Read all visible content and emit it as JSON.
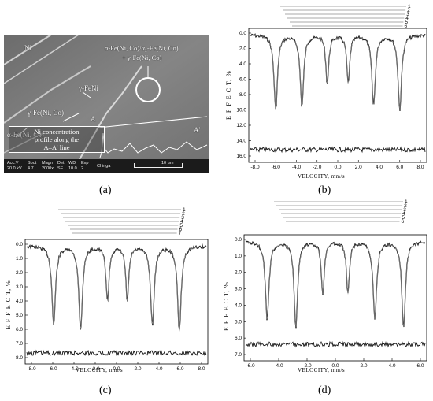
{
  "panels": [
    {
      "id": "a",
      "caption": "(a)"
    },
    {
      "id": "b",
      "caption": "(b)"
    },
    {
      "id": "c",
      "caption": "(c)"
    },
    {
      "id": "d",
      "caption": "(d)"
    }
  ],
  "sem": {
    "phase_labels": [
      "Ni",
      "α-Fe(Ni, Co)/α₂-Fe(Ni, Co)",
      "+ γ-Fe(Ni, Co)",
      "γ-FeNi",
      "γ-Fe(Ni, Co)",
      "A",
      "A'",
      "α-Fe(Ni, Co)"
    ],
    "profile_note": [
      "Ni concentration",
      "profile along the",
      "A–A' line"
    ],
    "info_headers": [
      "Acc.V",
      "Spot",
      "Magn",
      "Det",
      "WD",
      "Exp"
    ],
    "info_values": [
      "20.0 kV",
      "4.7",
      "2000x",
      "SE",
      "10.0",
      "2"
    ],
    "operator": "Chinga",
    "scale_label": "10 μm"
  },
  "spectra": {
    "ylabel": "E F F E C T, %",
    "xlabel": "VELOCITY,  mm/s",
    "b": {
      "yticks": [
        "0.0",
        "2.0",
        "4.0",
        "6.0",
        "8.0",
        "10.0",
        "12.0",
        "14.0",
        "16.0"
      ],
      "xticks": [
        "-8.0",
        "-6.0",
        "-4.0",
        "-2.0",
        "0.0",
        "2.0",
        "4.0",
        "6.0",
        "8.0"
      ],
      "brackets": [
        "1",
        "2",
        "3",
        "4",
        "5",
        "6"
      ]
    },
    "c": {
      "yticks": [
        "0.0",
        "1.0",
        "2.0",
        "3.0",
        "4.0",
        "5.0",
        "6.0",
        "7.0",
        "8.0"
      ],
      "xticks": [
        "-8.0",
        "-6.0",
        "-4.0",
        "-2.0",
        "0.0",
        "2.0",
        "4.0",
        "6.0",
        "8.0"
      ],
      "brackets": [
        "1",
        "2",
        "3",
        "4",
        "5",
        "6",
        "7"
      ]
    },
    "d": {
      "yticks": [
        "0.0",
        "1.0",
        "2.0",
        "3.0",
        "4.0",
        "5.0",
        "6.0",
        "7.0"
      ],
      "xticks": [
        "-6.0",
        "-4.0",
        "-2.0",
        "0.0",
        "2.0",
        "4.0",
        "6.0"
      ],
      "brackets": [
        "1",
        "2",
        "3",
        "4",
        "5",
        "6"
      ]
    }
  }
}
